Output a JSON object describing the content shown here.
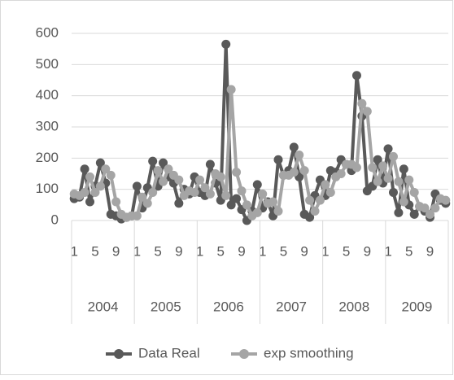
{
  "chart_data": {
    "type": "line",
    "categories": [
      "1",
      null,
      null,
      null,
      "5",
      null,
      null,
      null,
      "9",
      null,
      null,
      null,
      "1",
      null,
      null,
      null,
      "5",
      null,
      null,
      null,
      "9",
      null,
      null,
      null,
      "1",
      null,
      null,
      null,
      "5",
      null,
      null,
      null,
      "9",
      null,
      null,
      null,
      "1",
      null,
      null,
      null,
      "5",
      null,
      null,
      null,
      "9",
      null,
      null,
      null,
      "1",
      null,
      null,
      null,
      "5",
      null,
      null,
      null,
      "9",
      null,
      null,
      null,
      "1",
      null,
      null,
      null,
      "5",
      null,
      null,
      null,
      "9",
      null,
      null,
      null
    ],
    "groups": [
      "2004",
      "2005",
      "2006",
      "2007",
      "2008",
      "2009"
    ],
    "series": [
      {
        "name": "Data Real",
        "color": "#595959",
        "values": [
          70,
          75,
          165,
          60,
          110,
          185,
          120,
          20,
          15,
          5,
          10,
          15,
          110,
          40,
          105,
          190,
          110,
          185,
          140,
          120,
          55,
          100,
          85,
          140,
          90,
          80,
          180,
          120,
          65,
          565,
          50,
          70,
          35,
          0,
          30,
          115,
          40,
          60,
          15,
          195,
          145,
          160,
          235,
          140,
          20,
          10,
          80,
          130,
          80,
          160,
          155,
          195,
          180,
          160,
          465,
          335,
          95,
          110,
          195,
          120,
          230,
          90,
          25,
          165,
          50,
          20,
          45,
          30,
          10,
          85,
          65,
          55
        ]
      },
      {
        "name": "exp smoothing",
        "color": "#a5a5a5",
        "values": [
          85,
          80,
          90,
          140,
          90,
          110,
          165,
          145,
          60,
          20,
          10,
          15,
          15,
          75,
          55,
          90,
          160,
          125,
          165,
          145,
          130,
          80,
          95,
          90,
          130,
          105,
          85,
          150,
          140,
          80,
          420,
          155,
          95,
          50,
          15,
          25,
          85,
          55,
          60,
          30,
          145,
          145,
          155,
          210,
          160,
          65,
          30,
          65,
          115,
          90,
          140,
          150,
          180,
          180,
          170,
          375,
          350,
          170,
          125,
          175,
          135,
          205,
          125,
          60,
          130,
          90,
          45,
          40,
          20,
          40,
          70,
          65
        ]
      }
    ],
    "ylim": [
      0,
      600
    ],
    "yticks": [
      0,
      100,
      200,
      300,
      400,
      500,
      600
    ],
    "grid": true,
    "legend": "bottom"
  }
}
